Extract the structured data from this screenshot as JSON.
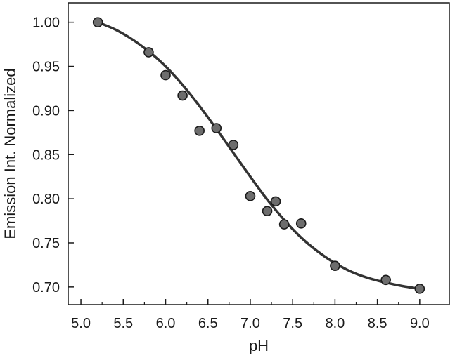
{
  "chart_data": {
    "type": "scatter",
    "title": "",
    "xlabel": "pH",
    "ylabel": "Emission Int. Normalized",
    "xlim": [
      4.85,
      9.35
    ],
    "ylim": [
      0.68,
      1.022
    ],
    "x_ticks": [
      5.0,
      5.5,
      6.0,
      6.5,
      7.0,
      7.5,
      8.0,
      8.5,
      9.0
    ],
    "x_tick_labels": [
      "5.0",
      "5.5",
      "6.0",
      "6.5",
      "7.0",
      "7.5",
      "8.0",
      "8.5",
      "9.0"
    ],
    "y_ticks": [
      0.7,
      0.75,
      0.8,
      0.85,
      0.9,
      0.95,
      1.0
    ],
    "y_tick_labels": [
      "0.70",
      "0.75",
      "0.80",
      "0.85",
      "0.90",
      "0.95",
      "1.00"
    ],
    "grid": false,
    "legend": "none",
    "series": [
      {
        "kind": "points",
        "x": [
          5.2,
          5.8,
          6.0,
          6.2,
          6.4,
          6.6,
          6.8,
          7.0,
          7.2,
          7.3,
          7.4,
          7.6,
          8.0,
          8.6,
          9.0
        ],
        "y": [
          1.0,
          0.966,
          0.94,
          0.917,
          0.877,
          0.88,
          0.861,
          0.803,
          0.786,
          0.797,
          0.771,
          0.772,
          0.724,
          0.708,
          0.698
        ],
        "color": "#6d6d6d"
      },
      {
        "kind": "fit_curve",
        "x": [
          5.2,
          5.4,
          5.6,
          5.8,
          6.0,
          6.2,
          6.4,
          6.6,
          6.8,
          7.0,
          7.2,
          7.4,
          7.6,
          7.8,
          8.0,
          8.2,
          8.4,
          8.6,
          8.8,
          9.0
        ],
        "y": [
          1.0,
          0.992,
          0.981,
          0.967,
          0.95,
          0.929,
          0.905,
          0.879,
          0.852,
          0.825,
          0.799,
          0.776,
          0.756,
          0.74,
          0.727,
          0.717,
          0.71,
          0.705,
          0.701,
          0.698
        ],
        "color": "#333333"
      }
    ]
  }
}
